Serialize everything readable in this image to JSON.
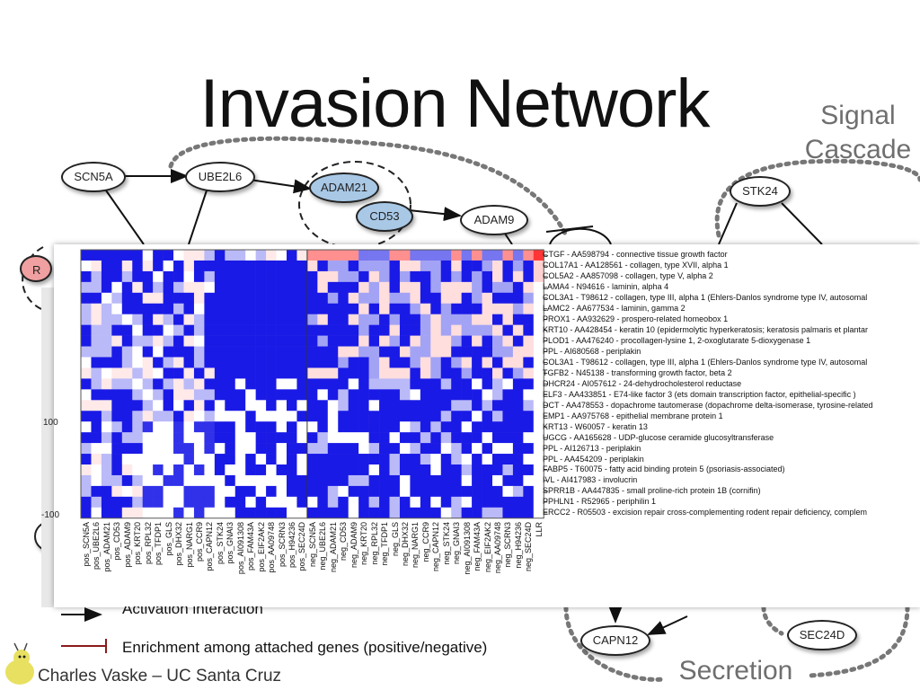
{
  "slide": {
    "title": "Invasion Network",
    "zone_signal": "Signal Cascade",
    "zone_secretion": "Secretion",
    "credit": "Charles Vaske – UC Santa Cruz"
  },
  "nodes": {
    "scn5a": "SCN5A",
    "ube2l6": "UBE2L6",
    "adam21": "ADAM21",
    "cd53": "CD53",
    "adam9": "ADAM9",
    "stk24": "STK24",
    "capn12": "CAPN12",
    "sec24d": "SEC24D",
    "partial_r": "R"
  },
  "legend": {
    "activation": "Activation interaction",
    "enrichment": "Enrichment among attached genes (positive/negative)"
  },
  "heatmap": {
    "scale_max": "100",
    "scale_min": "-100",
    "colors": {
      "pos": "#e8201e",
      "neg": "#1a1ae6",
      "mid": "#ffffff"
    },
    "columns": [
      "pos_SCN5A",
      "pos_UBE2L6",
      "pos_ADAM21",
      "pos_CD53",
      "pos_ADAM9",
      "pos_KRT20",
      "pos_RPL32",
      "pos_TFDP1",
      "pos_GLS",
      "pos_DHX32",
      "pos_NARG1",
      "pos_CCR9",
      "pos_CAPN12",
      "pos_STK24",
      "pos_GNAI3",
      "pos_AI091308",
      "pos_FAM43A",
      "pos_EIF2AK2",
      "pos_AA09748",
      "pos_SCRN3",
      "pos_H94236",
      "pos_SEC24D",
      "neg_SCN5A",
      "neg_UBE2L6",
      "neg_ADAM21",
      "neg_CD53",
      "neg_ADAM9",
      "neg_KRT20",
      "neg_RPL32",
      "neg_TFDP1",
      "neg_GLS",
      "neg_DHX32",
      "neg_NARG1",
      "neg_CCR9",
      "neg_CAPN12",
      "neg_STK24",
      "neg_GNAI3",
      "neg_AI091308",
      "neg_FAM43A",
      "neg_EIF2AK2",
      "neg_AA09748",
      "neg_SCRN3",
      "neg_H94236",
      "neg_SEC24D",
      "LLR"
    ],
    "rows": [
      "CTGF - AA598794 - connective tissue growth factor",
      "COL17A1 - AA128561 - collagen, type XVII, alpha 1",
      "COL5A2 - AA857098 - collagen, type V, alpha 2",
      "LAMA4 - N94616 - laminin, alpha 4",
      "COL3A1 - T98612 - collagen, type III, alpha 1 (Ehlers-Danlos syndrome type IV, autosomal",
      "LAMC2 - AA677534 - laminin, gamma 2",
      "PROX1 - AA932629 - prospero-related homeobox 1",
      "KRT10 - AA428454 - keratin 10 (epidermolytic hyperkeratosis; keratosis palmaris et plantar",
      "PLOD1 - AA476240 - procollagen-lysine 1, 2-oxoglutarate 5-dioxygenase 1",
      "PPL - AI680568 - periplakin",
      "COL3A1 - T98612 - collagen, type III, alpha 1 (Ehlers-Danlos syndrome type IV, autosomal",
      "TGFB2 - N45138 - transforming growth factor, beta 2",
      "DHCR24 - AI057612 - 24-dehydrocholesterol reductase",
      "ELF3 - AA433851 - E74-like factor 3 (ets domain transcription factor, epithelial-specific )",
      "DCT - AA478553 - dopachrome tautomerase (dopachrome delta-isomerase, tyrosine-related",
      "EMP1 - AA975768 - epithelial membrane protein 1",
      "KRT13 - W60057 - keratin 13",
      "UGCG - AA165628 - UDP-glucose ceramide glucosyltransferase",
      "PPL - AI126713 - periplakin",
      "PPL - AA454209 - periplakin",
      "FABP5 - T60075 - fatty acid binding protein 5 (psoriasis-associated)",
      "IVL - AI417983 - involucrin",
      "SPRR1B - AA447835 - small proline-rich protein 1B (cornifin)",
      "PPHLN1 - R52965 - periphilin 1",
      "ERCC2 - R05503 - excision repair cross-complementing rodent repair deficiency, complem"
    ]
  }
}
